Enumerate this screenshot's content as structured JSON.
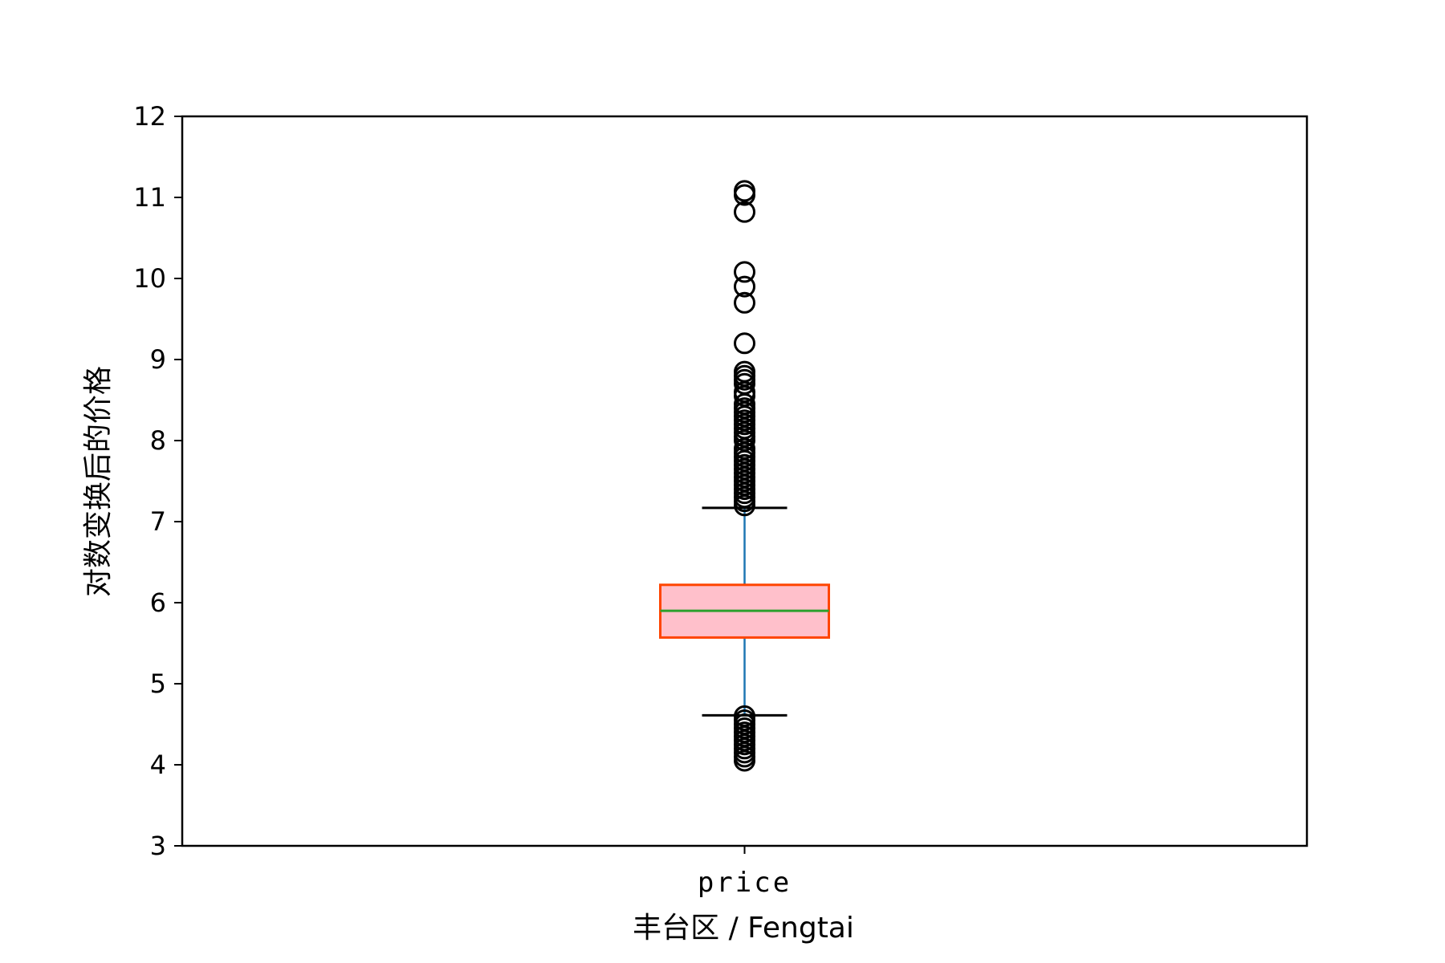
{
  "chart_data": {
    "type": "box",
    "categories": [
      "price"
    ],
    "xlabel": "丰台区 / Fengtai",
    "ylabel": "对数变换后的价格",
    "ylim": [
      3,
      12
    ],
    "yticks": [
      3,
      4,
      5,
      6,
      7,
      8,
      9,
      10,
      11,
      12
    ],
    "grid": false,
    "boxes": [
      {
        "category": "price",
        "q1": 5.57,
        "median": 5.9,
        "q3": 6.22,
        "whisker_low": 4.61,
        "whisker_high": 7.17,
        "outliers_high": [
          7.2,
          7.25,
          7.3,
          7.35,
          7.4,
          7.45,
          7.5,
          7.55,
          7.6,
          7.65,
          7.7,
          7.75,
          7.8,
          7.85,
          7.9,
          8.0,
          8.05,
          8.1,
          8.15,
          8.2,
          8.25,
          8.3,
          8.35,
          8.4,
          8.45,
          8.55,
          8.6,
          8.7,
          8.75,
          8.8,
          8.85,
          9.2,
          9.7,
          9.9,
          10.08,
          10.82,
          11.03,
          11.08
        ],
        "outliers_low": [
          4.05,
          4.1,
          4.15,
          4.2,
          4.25,
          4.3,
          4.35,
          4.4,
          4.45,
          4.5,
          4.55,
          4.6
        ]
      }
    ],
    "colors": {
      "box_fill": "#ffc0cb",
      "box_edge": "#ff4500",
      "median": "#2ca02c",
      "whisker": "#1f77b4",
      "cap": "#000000",
      "flier": "#000000"
    }
  }
}
